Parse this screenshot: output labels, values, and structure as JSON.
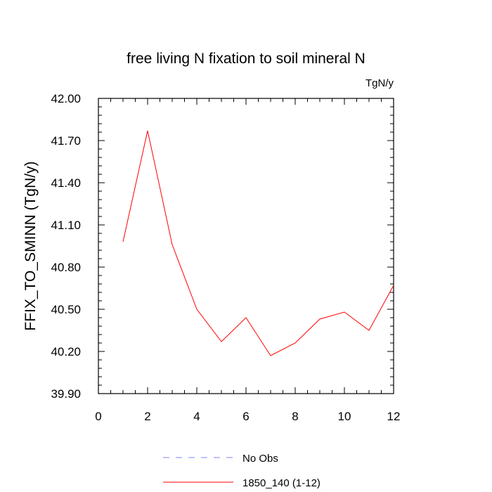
{
  "chart_data": {
    "type": "line",
    "title": "free living N fixation to soil mineral N",
    "units_label": "TgN/y",
    "ylabel": "FFIX_TO_SMINN  (TgN/y)",
    "xlabel": "",
    "xlim": [
      0,
      12
    ],
    "ylim": [
      39.9,
      42.0
    ],
    "x_ticks": [
      0,
      2,
      4,
      6,
      8,
      10,
      12
    ],
    "x_tick_labels": [
      "0",
      "2",
      "4",
      "6",
      "8",
      "10",
      "12"
    ],
    "y_ticks": [
      39.9,
      40.2,
      40.5,
      40.8,
      41.1,
      41.4,
      41.7,
      42.0
    ],
    "y_tick_labels": [
      "39.90",
      "40.20",
      "40.50",
      "40.80",
      "41.10",
      "41.40",
      "41.70",
      "42.00"
    ],
    "grid": false,
    "legend_position": "bottom",
    "series": [
      {
        "name": "1850_140 (1-12)",
        "color": "#ff0000",
        "style": "solid",
        "x": [
          1,
          2,
          3,
          4,
          5,
          6,
          7,
          8,
          9,
          10,
          11,
          12
        ],
        "y": [
          40.98,
          41.77,
          40.96,
          40.5,
          40.27,
          40.44,
          40.17,
          40.26,
          40.43,
          40.48,
          40.35,
          40.67
        ]
      }
    ],
    "legend": [
      {
        "label": "No Obs",
        "color": "#8080ff",
        "style": "dashed"
      },
      {
        "label": "1850_140 (1-12)",
        "color": "#ff0000",
        "style": "solid"
      }
    ]
  }
}
